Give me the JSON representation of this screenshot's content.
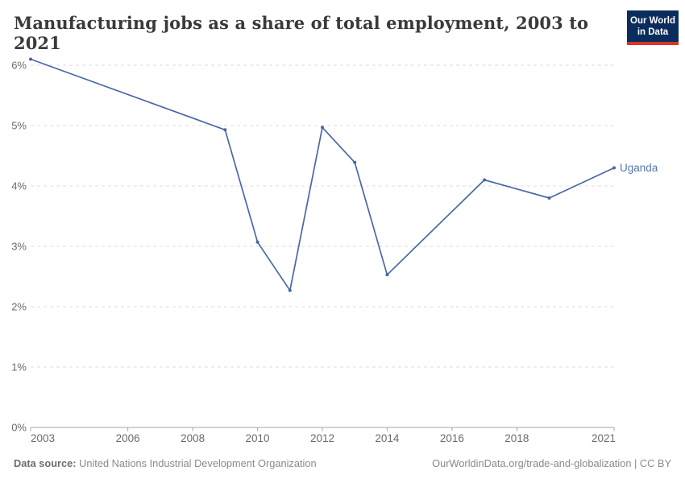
{
  "header": {
    "title": "Manufacturing jobs as a share of total employment, 2003 to 2021",
    "logo": {
      "line1": "Our World",
      "line2": "in Data"
    }
  },
  "footer": {
    "data_source_label": "Data source:",
    "data_source_value": "United Nations Industrial Development Organization",
    "attribution": "OurWorldinData.org/trade-and-globalization | CC BY"
  },
  "colors": {
    "line": "#4868a6",
    "entity_label": "#5577ac",
    "grid": "#dddddd",
    "axis": "#a5a5a5",
    "tick_text": "#6b6b6b",
    "title_text": "#3a3a3a",
    "footer_text": "#8a8a8a",
    "logo_bg": "#0b2d5c",
    "logo_accent": "#d8352a"
  },
  "chart_data": {
    "type": "line",
    "title": "Manufacturing jobs as a share of total employment, 2003 to 2021",
    "xlabel": "",
    "ylabel": "",
    "x": [
      2003,
      2009,
      2010,
      2011,
      2012,
      2013,
      2014,
      2017,
      2019,
      2021
    ],
    "series": [
      {
        "name": "Uganda",
        "values": [
          6.1,
          4.93,
          3.07,
          2.27,
          4.97,
          4.39,
          2.53,
          4.1,
          3.8,
          4.3
        ]
      }
    ],
    "x_ticks": [
      2003,
      2006,
      2008,
      2010,
      2012,
      2014,
      2016,
      2018,
      2021
    ],
    "y_ticks": [
      0,
      1,
      2,
      3,
      4,
      5,
      6
    ],
    "y_tick_suffix": "%",
    "xlim": [
      2003,
      2021
    ],
    "ylim": [
      0,
      6.2
    ],
    "grid": "horizontal-dashed",
    "legend": "entity-label-at-line-end",
    "markers": "small-dots"
  }
}
